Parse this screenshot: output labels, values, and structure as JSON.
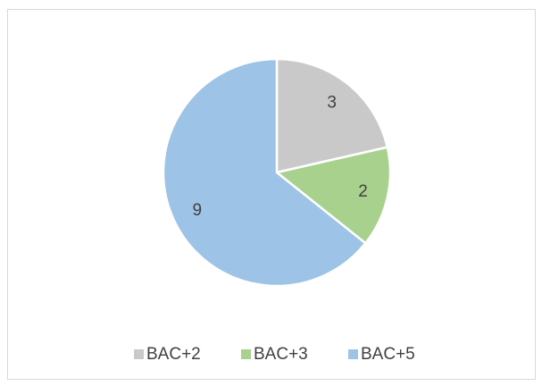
{
  "chart_data": {
    "type": "pie",
    "categories": [
      "BAC+2",
      "BAC+3",
      "BAC+5"
    ],
    "values": [
      3,
      2,
      9
    ],
    "colors": [
      "#c9c9c9",
      "#a9d18e",
      "#9dc3e6"
    ],
    "legend": "bottom"
  }
}
